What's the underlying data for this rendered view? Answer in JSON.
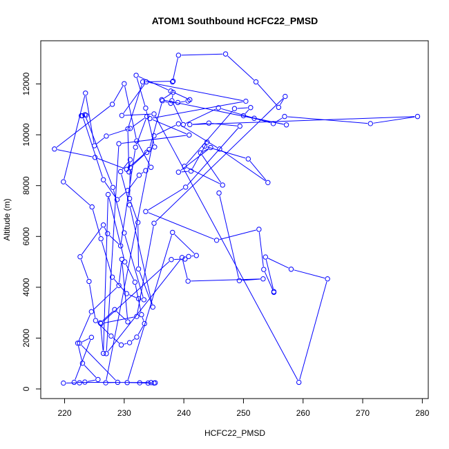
{
  "chart_data": {
    "type": "line",
    "title": "ATOM1 Southbound HCFC22_PMSD",
    "xlabel": "HCFC22_PMSD",
    "ylabel": "Altitude (m)",
    "xlim": [
      216,
      281
    ],
    "ylim": [
      -380,
      13700
    ],
    "xticks": [
      220,
      230,
      240,
      250,
      260,
      270,
      280
    ],
    "yticks": [
      0,
      2000,
      4000,
      6000,
      8000,
      10000,
      12000
    ],
    "xtick_labels": [
      "220",
      "230",
      "240",
      "250",
      "260",
      "270",
      "280"
    ],
    "ytick_labels": [
      "0",
      "2000",
      "4000",
      "6000",
      "8000",
      "10000",
      "12000"
    ],
    "colors": {
      "series": "#0000ff",
      "axis": "#000000",
      "background": "#ffffff"
    },
    "grid": false,
    "legend": "none",
    "marker": "open-circle",
    "series": [
      {
        "x": [
          219.8,
          222.5,
          223.4,
          225.6,
          223.0,
          222.2,
          224.5,
          229.1,
          229.6,
          230.6,
          228.4,
          226.0,
          226.5,
          227.3,
          230.1,
          231.8,
          232.9,
          233.4,
          232.1,
          230.9,
          229.5,
          227.8,
          225.2,
          224.1,
          222.6,
          226.5,
          227.2,
          229.4,
          231.9,
          233.8,
          231.0,
          227.0,
          225.0,
          223.5,
          219.8,
          224.6,
          226.1,
          228.0,
          230.4,
          232.4,
          233.3,
          230.0,
          228.1,
          223.4,
          222.8,
          223.6,
          223.0,
          226.5,
          228.8,
          230.6,
          232.5,
          233.6,
          234.5,
          232.1,
          230.0,
          228.0,
          218.3,
          225.1,
          230.4,
          234.2,
          236.4,
          237.8,
          239.0,
          240.7,
          241.0,
          237.8,
          232.0,
          233.6,
          235.1,
          233.8,
          231.0,
          230.9,
          232.3,
          232.4,
          234.8,
          230.9,
          229.4,
          231.0,
          230.8,
          230.6,
          233.1,
          238.2,
          238.1,
          239.1,
          247.0,
          252.1,
          255.9,
          257.0,
          235.0,
          232.1,
          226.1,
          237.9,
          240.2,
          240.8,
          242.1,
          238.1,
          230.5,
          235.0,
          232.6,
          234.0,
          235.2,
          234.5,
          221.6,
          224.5,
          222.5,
          228.9,
          226.9,
          235.0,
          239.1,
          246.0,
          254.1,
          250.8,
          243.5,
          243.9,
          241.2,
          239.1,
          244.5,
          242.8,
          246.5,
          240.1,
          248.5,
          251.2,
          250.0,
          257.2,
          236.3,
          238.2,
          238.0,
          239.9,
          245.8,
          251.8,
          255.0,
          256.9,
          271.3,
          279.2,
          241.0,
          244.2,
          249.4,
          240.3,
          233.6,
          245.5,
          252.6,
          253.4,
          255.1,
          255.1,
          253.7,
          258.0,
          264.1,
          259.3,
          235.0,
          229.6,
          233.7,
          250.4,
          234.3,
          240.9,
          229.1,
          227.0,
          239.7,
          240.7,
          253.3,
          249.3,
          245.9
        ],
        "y": [
          230,
          241,
          270,
          370,
          1010,
          1800,
          3040,
          4070,
          5100,
          2640,
          3120,
          2600,
          1400,
          7650,
          5000,
          4200,
          2920,
          2570,
          2040,
          1820,
          1730,
          2080,
          2690,
          4230,
          5200,
          6450,
          6110,
          5630,
          9510,
          10720,
          10250,
          9950,
          9570,
          11640,
          8150,
          7160,
          5910,
          4400,
          3750,
          3550,
          3510,
          6140,
          7930,
          10790,
          10750,
          10770,
          10750,
          8230,
          7450,
          7810,
          8410,
          8590,
          8720,
          9760,
          12010,
          11200,
          9440,
          9110,
          8640,
          9420,
          11340,
          11240,
          11270,
          11330,
          11380,
          11720,
          12340,
          11050,
          9520,
          9310,
          8710,
          7490,
          6550,
          4720,
          3220,
          7240,
          8550,
          9020,
          8540,
          10230,
          12080,
          12110,
          12080,
          13130,
          13180,
          12080,
          11080,
          11510,
          6520,
          2850,
          2570,
          5090,
          5110,
          5210,
          5250,
          6160,
          250,
          230,
          240,
          230,
          241,
          250,
          260,
          2030,
          1800,
          260,
          240,
          9960,
          10430,
          9440,
          8120,
          9050,
          9550,
          9710,
          8570,
          8530,
          9500,
          9290,
          8020,
          8760,
          11030,
          11070,
          10750,
          10390,
          11380,
          11670,
          11340,
          10400,
          11060,
          10650,
          10440,
          10720,
          10440,
          10720,
          10400,
          10460,
          10340,
          7940,
          6980,
          5850,
          6280,
          4700,
          3800,
          3830,
          5190,
          4710,
          4330,
          260,
          10820,
          10760,
          12080,
          11320,
          10640,
          9990,
          9650,
          1390,
          5170,
          4240,
          4330,
          4260,
          7710
        ]
      }
    ]
  }
}
